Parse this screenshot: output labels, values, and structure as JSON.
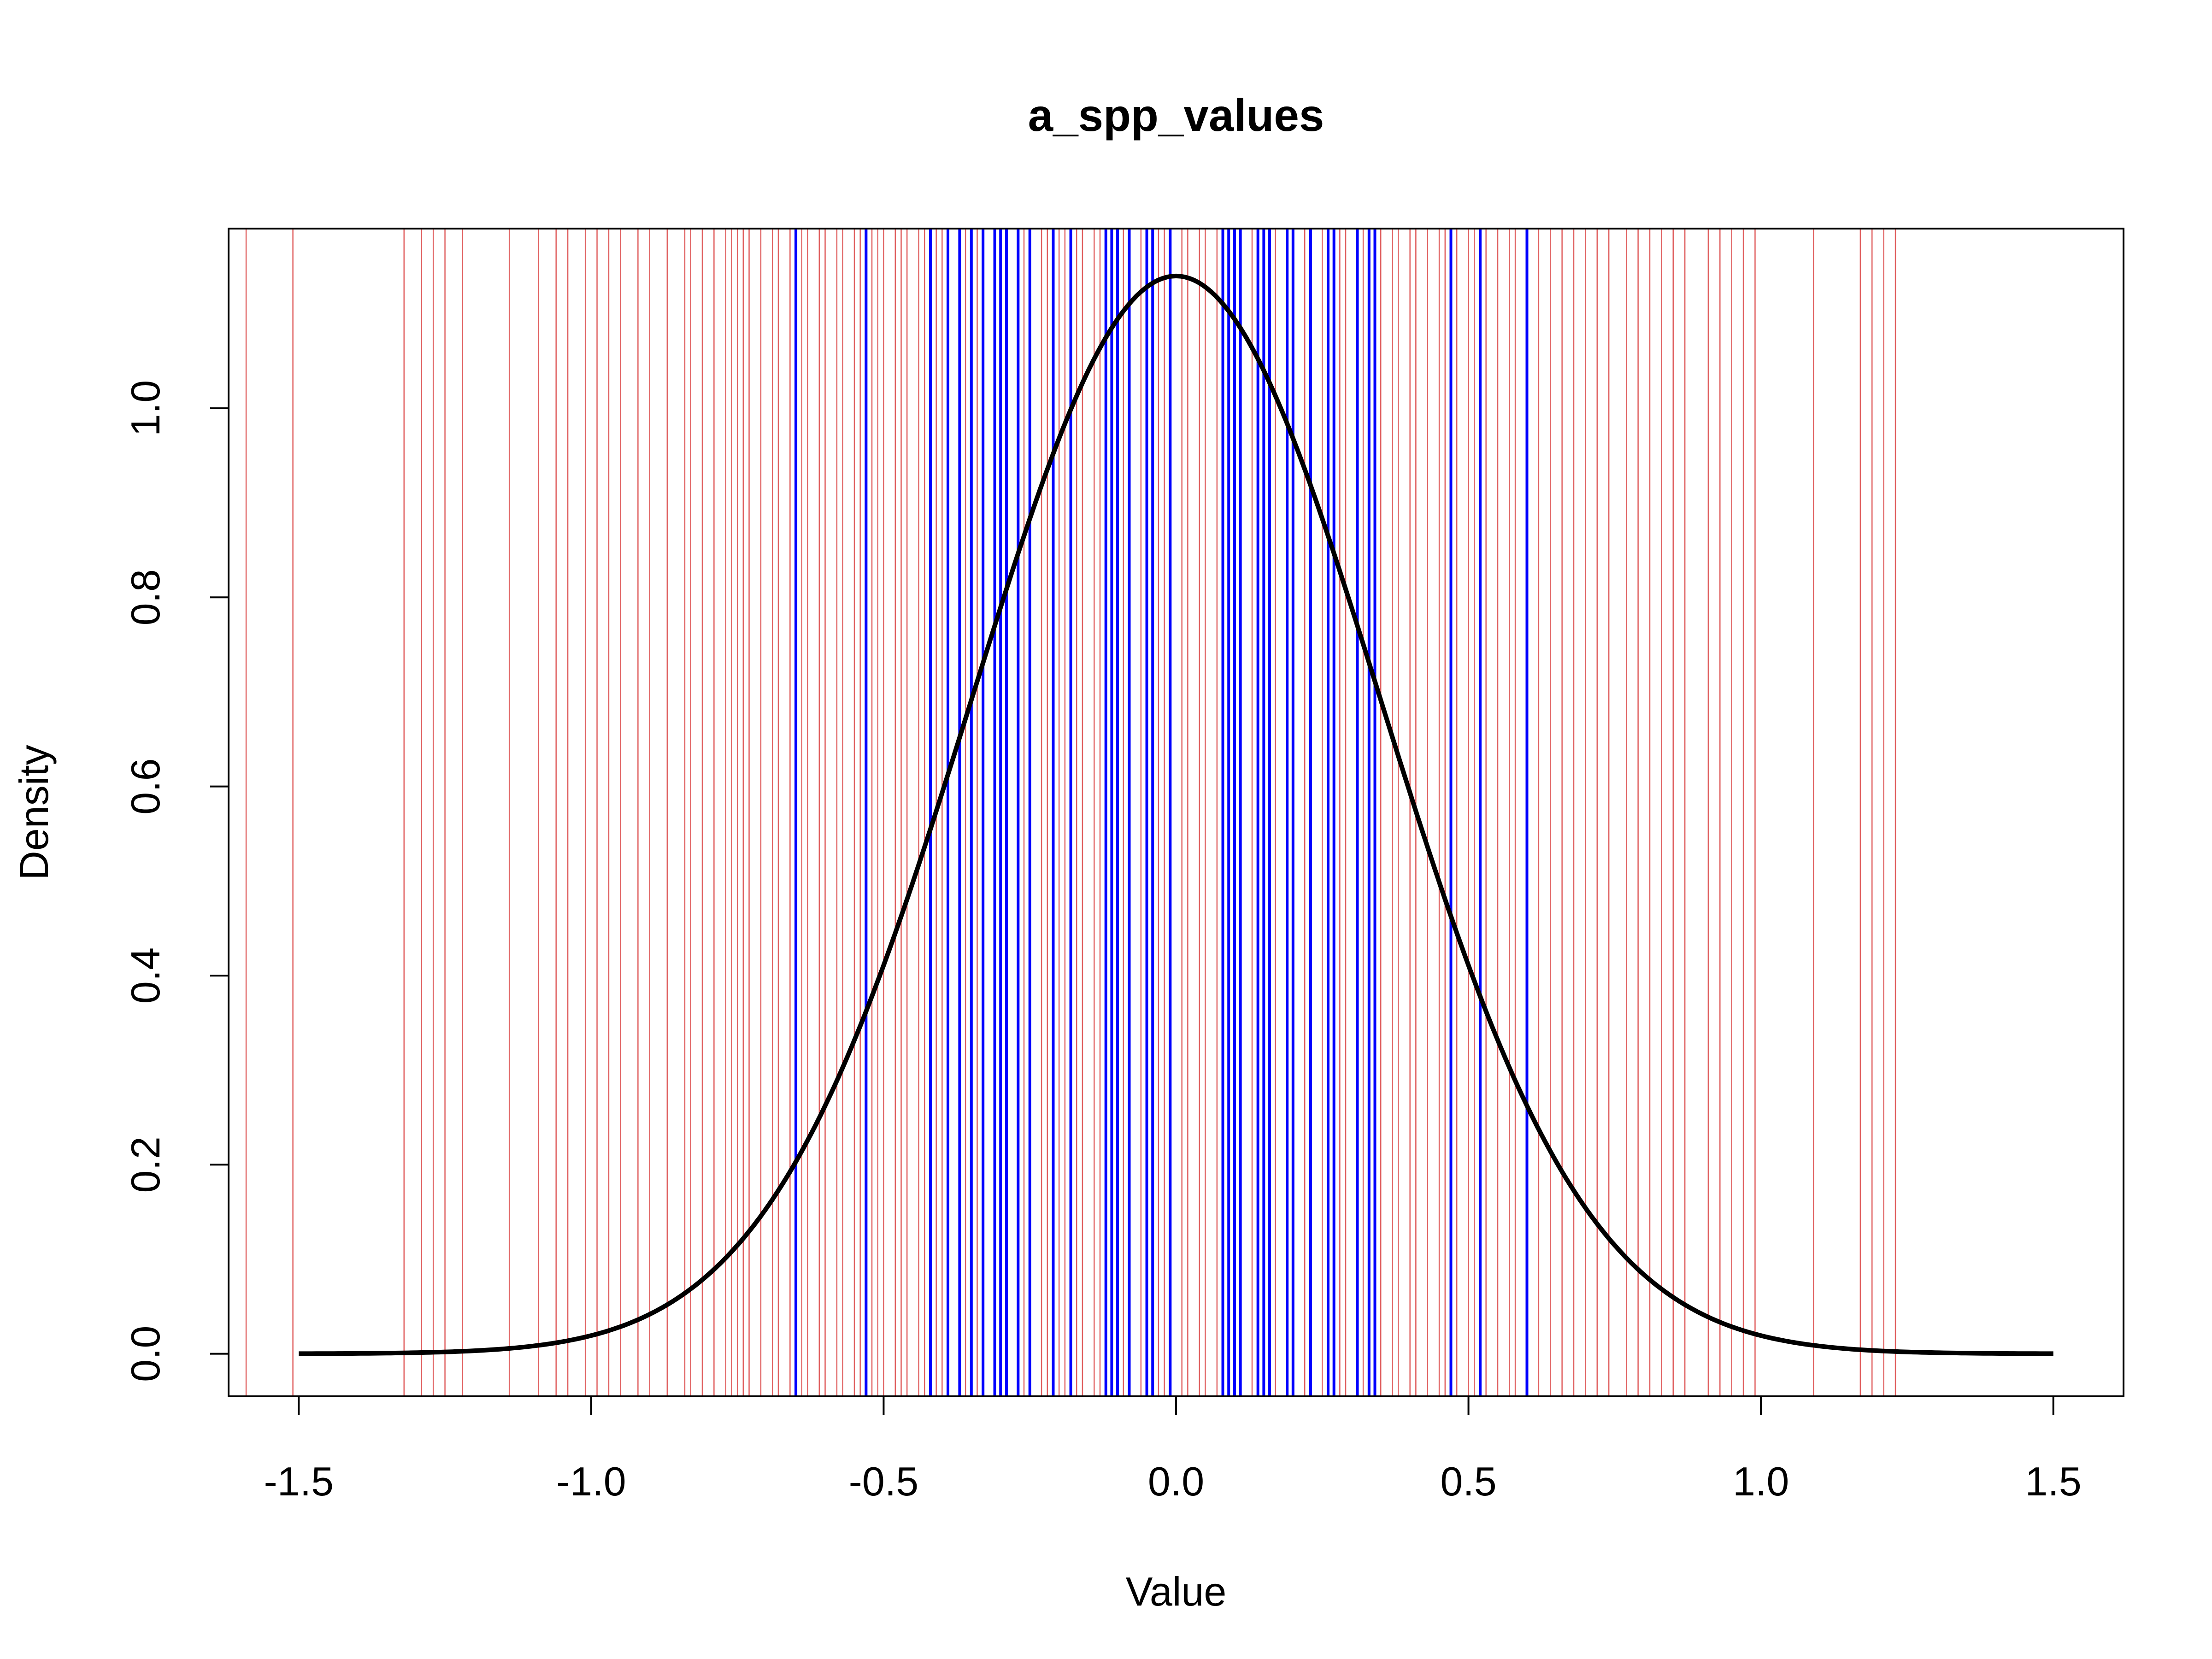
{
  "chart_data": {
    "type": "density",
    "title": "a_spp_values",
    "xlabel": "Value",
    "ylabel": "Density",
    "xlim": [
      -1.62,
      1.62
    ],
    "ylim": [
      -0.045,
      1.19
    ],
    "x_ticks": [
      "-1.5",
      "-1.0",
      "-0.5",
      "0.0",
      "0.5",
      "1.0",
      "1.5"
    ],
    "y_ticks": [
      "0.0",
      "0.2",
      "0.4",
      "0.6",
      "0.8",
      "1.0"
    ],
    "grid": false,
    "legend": "none",
    "curve": {
      "distribution": "normal",
      "mean": 0.0,
      "sd": 0.35,
      "x_range": [
        -1.5,
        1.5
      ],
      "color": "#000000"
    },
    "red_lines": {
      "color": "#e06060",
      "values": [
        -1.59,
        -1.51,
        -1.32,
        -1.29,
        -1.27,
        -1.25,
        -1.22,
        -1.14,
        -1.09,
        -1.06,
        -1.04,
        -1.01,
        -0.99,
        -0.97,
        -0.95,
        -0.92,
        -0.9,
        -0.87,
        -0.84,
        -0.83,
        -0.81,
        -0.79,
        -0.77,
        -0.76,
        -0.75,
        -0.74,
        -0.73,
        -0.71,
        -0.69,
        -0.68,
        -0.66,
        -0.64,
        -0.63,
        -0.61,
        -0.6,
        -0.58,
        -0.57,
        -0.55,
        -0.54,
        -0.52,
        -0.51,
        -0.5,
        -0.48,
        -0.47,
        -0.46,
        -0.44,
        -0.43,
        -0.41,
        -0.4,
        -0.39,
        -0.37,
        -0.36,
        -0.34,
        -0.33,
        -0.31,
        -0.3,
        -0.29,
        -0.27,
        -0.26,
        -0.25,
        -0.23,
        -0.22,
        -0.2,
        -0.19,
        -0.17,
        -0.16,
        -0.14,
        -0.13,
        -0.12,
        -0.1,
        -0.09,
        -0.08,
        -0.06,
        -0.05,
        -0.03,
        -0.02,
        -0.01,
        0.01,
        0.02,
        0.04,
        0.05,
        0.07,
        0.08,
        0.1,
        0.11,
        0.13,
        0.14,
        0.16,
        0.17,
        0.19,
        0.2,
        0.22,
        0.23,
        0.25,
        0.26,
        0.28,
        0.29,
        0.31,
        0.32,
        0.34,
        0.35,
        0.37,
        0.38,
        0.4,
        0.41,
        0.43,
        0.45,
        0.46,
        0.48,
        0.5,
        0.51,
        0.53,
        0.55,
        0.57,
        0.58,
        0.6,
        0.62,
        0.64,
        0.66,
        0.68,
        0.7,
        0.72,
        0.74,
        0.77,
        0.79,
        0.81,
        0.83,
        0.85,
        0.87,
        0.91,
        0.93,
        0.95,
        0.97,
        0.99,
        1.09,
        1.17,
        1.19,
        1.21,
        1.23
      ]
    },
    "blue_lines": {
      "color": "#0000ff",
      "values": [
        -0.65,
        -0.53,
        -0.42,
        -0.39,
        -0.37,
        -0.35,
        -0.33,
        -0.31,
        -0.3,
        -0.29,
        -0.27,
        -0.25,
        -0.21,
        -0.18,
        -0.12,
        -0.11,
        -0.1,
        -0.08,
        -0.05,
        -0.04,
        -0.01,
        0.08,
        0.09,
        0.1,
        0.11,
        0.14,
        0.15,
        0.16,
        0.19,
        0.2,
        0.23,
        0.26,
        0.27,
        0.31,
        0.33,
        0.34,
        0.47,
        0.52,
        0.6
      ]
    }
  }
}
